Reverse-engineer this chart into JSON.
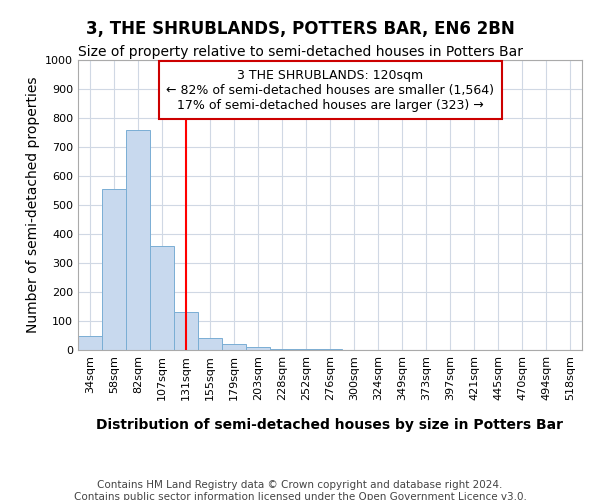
{
  "title": "3, THE SHRUBLANDS, POTTERS BAR, EN6 2BN",
  "subtitle": "Size of property relative to semi-detached houses in Potters Bar",
  "xlabel": "Distribution of semi-detached houses by size in Potters Bar",
  "ylabel": "Number of semi-detached properties",
  "footer": "Contains HM Land Registry data © Crown copyright and database right 2024.\nContains public sector information licensed under the Open Government Licence v3.0.",
  "bar_labels": [
    "34sqm",
    "58sqm",
    "82sqm",
    "107sqm",
    "131sqm",
    "155sqm",
    "179sqm",
    "203sqm",
    "228sqm",
    "252sqm",
    "276sqm",
    "300sqm",
    "324sqm",
    "349sqm",
    "373sqm",
    "397sqm",
    "421sqm",
    "445sqm",
    "470sqm",
    "494sqm",
    "518sqm"
  ],
  "bar_values": [
    50,
    555,
    760,
    360,
    130,
    40,
    20,
    10,
    5,
    5,
    5,
    0,
    0,
    0,
    0,
    0,
    0,
    0,
    0,
    0,
    0
  ],
  "bar_color": "#c8d9ee",
  "bar_edge_color": "#7aaed4",
  "ylim": [
    0,
    1000
  ],
  "yticks": [
    0,
    100,
    200,
    300,
    400,
    500,
    600,
    700,
    800,
    900,
    1000
  ],
  "red_line_x": 4.0,
  "annotation_text": "3 THE SHRUBLANDS: 120sqm\n← 82% of semi-detached houses are smaller (1,564)\n17% of semi-detached houses are larger (323) →",
  "annotation_box_color": "#ffffff",
  "annotation_box_edge": "#cc0000",
  "grid_color": "#d0d8e4",
  "background_color": "#ffffff",
  "title_fontsize": 12,
  "subtitle_fontsize": 10,
  "axis_label_fontsize": 10,
  "tick_fontsize": 8,
  "annotation_fontsize": 9,
  "footer_fontsize": 7.5
}
